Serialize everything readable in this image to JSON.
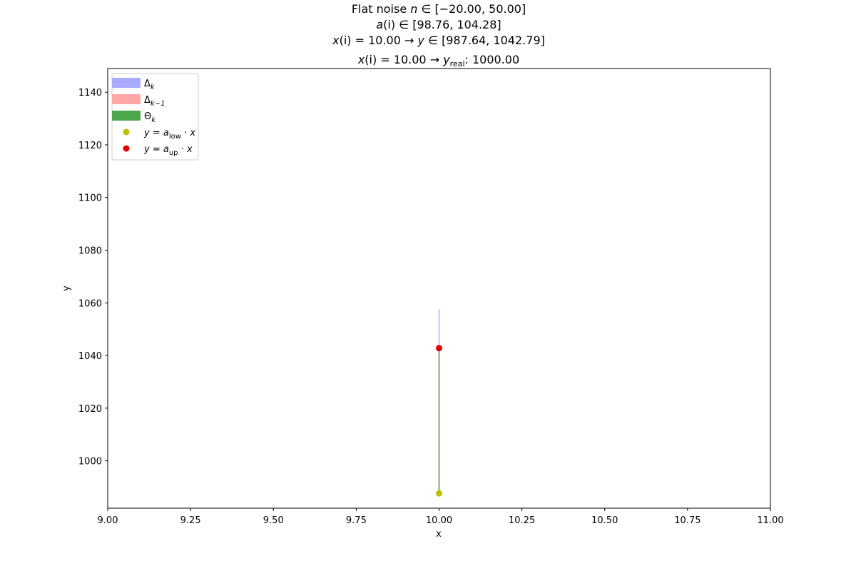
{
  "chart_data": {
    "type": "line",
    "title_lines": [
      {
        "prefix": "Flat noise ",
        "var": "n",
        "rel": " ∈ ",
        "rest": "[−20.00, 50.00]"
      },
      {
        "prefix": "",
        "var": "a",
        "mid": "(i)",
        "rel": " ∈ ",
        "rest": "[98.76, 104.28]"
      },
      {
        "prefix": "",
        "var": "x",
        "mid": "(i) = 10.00 → ",
        "var2": "y",
        "rel": " ∈ ",
        "rest": "[987.64, 1042.79]"
      },
      {
        "prefix": "",
        "var": "x",
        "mid": "(i) = 10.00 → ",
        "var2": "y",
        "sub": "real",
        "rest": ": 1000.00"
      }
    ],
    "xlabel": "x",
    "ylabel": "y",
    "xlim": [
      9.0,
      11.0
    ],
    "ylim": [
      982.0,
      1149.0
    ],
    "xticks": [
      9.0,
      9.25,
      9.5,
      9.75,
      10.0,
      10.25,
      10.5,
      10.75,
      11.0
    ],
    "xtick_labels": [
      "9.00",
      "9.25",
      "9.50",
      "9.75",
      "10.00",
      "10.25",
      "10.50",
      "10.75",
      "11.00"
    ],
    "yticks": [
      1000,
      1020,
      1040,
      1060,
      1080,
      1100,
      1120,
      1140
    ],
    "ytick_labels": [
      "1000",
      "1020",
      "1040",
      "1060",
      "1080",
      "1100",
      "1120",
      "1140"
    ],
    "intervals": [
      {
        "name": "Δk",
        "x": 10.0,
        "y_low": 987.64,
        "y_high": 1057.5,
        "color": "#aaaaff"
      },
      {
        "name": "Δk−1",
        "x": 10.0,
        "y_low": 987.64,
        "y_high": 1042.79,
        "color": "#ffa6a6"
      },
      {
        "name": "Θk",
        "x": 10.0,
        "y_low": 987.64,
        "y_high": 1042.79,
        "color": "#4ca64c"
      }
    ],
    "points": [
      {
        "name": "y = a_low · x",
        "x": 10.0,
        "y": 987.64,
        "color": "#bfbf00"
      },
      {
        "name": "y = a_up · x",
        "x": 10.0,
        "y": 1042.79,
        "color": "#e50000"
      }
    ],
    "legend": {
      "position": "upper-left",
      "entries": [
        {
          "kind": "bar",
          "color": "#aaaaff",
          "base": "Δ",
          "sub": "k"
        },
        {
          "kind": "bar",
          "color": "#ffa6a6",
          "base": "Δ",
          "sub": "k−1"
        },
        {
          "kind": "bar",
          "color": "#4ca64c",
          "base": "Θ",
          "sub": "k"
        },
        {
          "kind": "dot",
          "color": "#bfbf00",
          "pre": "y",
          "eq": " = ",
          "var": "a",
          "sub": "low",
          "post": " · ",
          "var2": "x"
        },
        {
          "kind": "dot",
          "color": "#e50000",
          "pre": "y",
          "eq": " = ",
          "var": "a",
          "sub": "up",
          "post": " · ",
          "var2": "x"
        }
      ]
    },
    "grid": false
  }
}
